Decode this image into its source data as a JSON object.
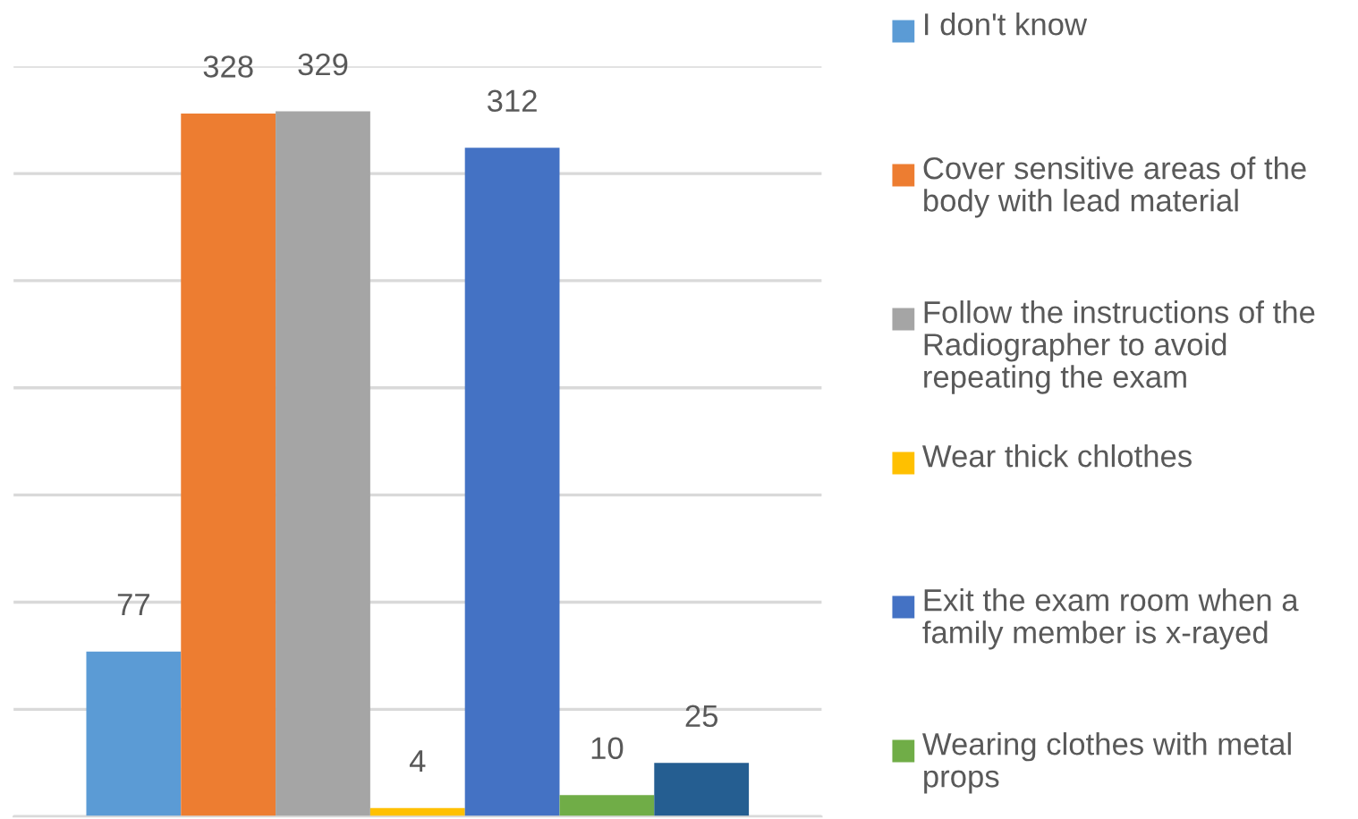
{
  "chart_data": {
    "type": "bar",
    "categories": [
      null
    ],
    "series": [
      {
        "name": "I don't know",
        "color": "#5b9bd5",
        "values": [
          77
        ]
      },
      {
        "name": "Cover sensitive areas of the body with lead material",
        "color": "#ed7d31",
        "values": [
          328
        ]
      },
      {
        "name": "Follow the instructions of the Radiographer to avoid repeating the exam",
        "color": "#a5a5a5",
        "values": [
          329
        ]
      },
      {
        "name": "Wear thick chlothes",
        "color": "#ffc000",
        "values": [
          4
        ]
      },
      {
        "name": "Exit the exam room when a family member is x-rayed",
        "color": "#4472c4",
        "values": [
          312
        ]
      },
      {
        "name": "Wearing clothes with metal props",
        "color": "#70ad47",
        "values": [
          10
        ]
      },
      {
        "color": "#255e91",
        "values": [
          25
        ]
      }
    ],
    "ylim": [
      0,
      350
    ],
    "yticks": [
      {
        "value": 0,
        "label": null
      },
      {
        "value": 50,
        "label": null
      },
      {
        "value": 100,
        "label": null
      },
      {
        "value": 150,
        "label": null
      },
      {
        "value": 200,
        "label": null
      },
      {
        "value": 250,
        "label": null
      },
      {
        "value": 300,
        "label": null
      },
      {
        "value": 350,
        "label": null
      }
    ],
    "grid": "y",
    "legend": "right",
    "data_labels": true
  }
}
